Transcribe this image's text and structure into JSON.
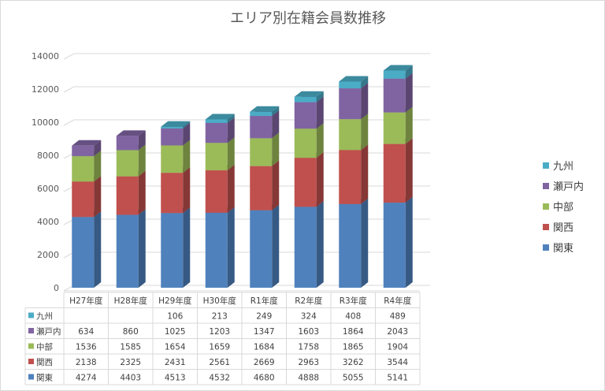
{
  "chart_data": {
    "type": "bar",
    "stacked": true,
    "three_d": true,
    "title": "エリア別在籍会員数推移",
    "categories": [
      "H27年度",
      "H28年度",
      "H29年度",
      "H30年度",
      "R1年度",
      "R2年度",
      "R3年度",
      "R4年度"
    ],
    "series": [
      {
        "name": "関東",
        "color": "#4f81bd",
        "values": [
          4274,
          4403,
          4513,
          4532,
          4680,
          4888,
          5055,
          5141
        ]
      },
      {
        "name": "関西",
        "color": "#c0504d",
        "values": [
          2138,
          2325,
          2431,
          2561,
          2669,
          2963,
          3262,
          3544
        ]
      },
      {
        "name": "中部",
        "color": "#9bbb59",
        "values": [
          1536,
          1585,
          1654,
          1659,
          1684,
          1758,
          1865,
          1904
        ]
      },
      {
        "name": "瀬戸内",
        "color": "#8064a2",
        "values": [
          634,
          860,
          1025,
          1203,
          1347,
          1603,
          1864,
          2043
        ]
      },
      {
        "name": "九州",
        "color": "#4bacc6",
        "values": [
          null,
          null,
          106,
          213,
          249,
          324,
          408,
          489
        ]
      }
    ],
    "ylim": [
      0,
      14000
    ],
    "yticks": [
      0,
      2000,
      4000,
      6000,
      8000,
      10000,
      12000,
      14000
    ],
    "grid": true,
    "legend": "right",
    "data_table": true
  }
}
